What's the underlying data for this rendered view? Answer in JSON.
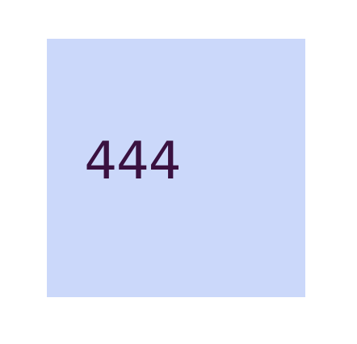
{
  "tile": {
    "value": "444",
    "background_color": "#cbd8fa",
    "text_color": "#3a1140"
  }
}
